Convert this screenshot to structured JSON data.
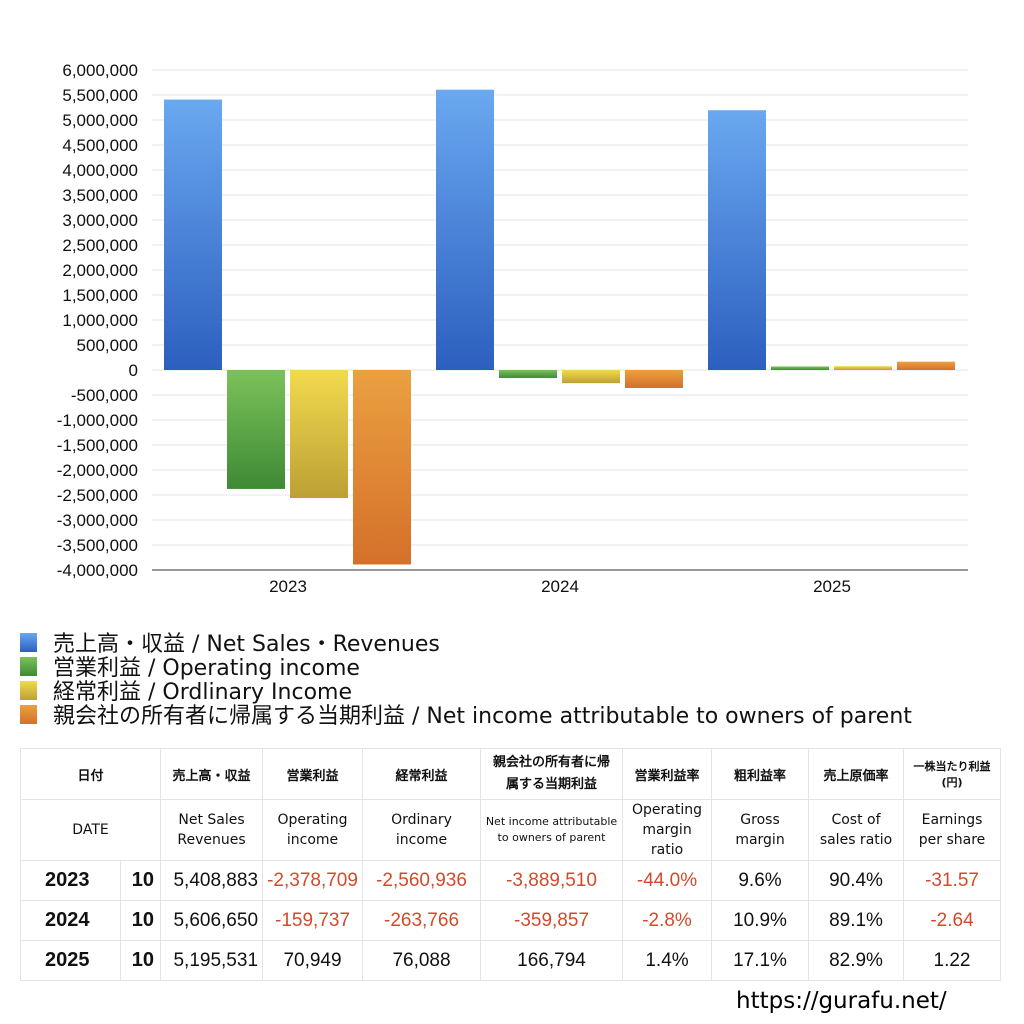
{
  "colors": {
    "net_sales": "#4a89e0",
    "operating_income": "#5ba844",
    "ordinary_income": "#d8bc3a",
    "net_income_parent": "#e0862e",
    "negative_text": "#d24a2a"
  },
  "chart_data": {
    "type": "bar",
    "categories": [
      "2023",
      "2024",
      "2025"
    ],
    "series": [
      {
        "name": "売上高・収益 / Net Sales・Revenues",
        "values": [
          5408883,
          5606650,
          5195531
        ]
      },
      {
        "name": "営業利益 / Operating income",
        "values": [
          -2378709,
          -159737,
          70949
        ]
      },
      {
        "name": "経常利益 / Ordlinary Income",
        "values": [
          -2560936,
          -263766,
          76088
        ]
      },
      {
        "name": "親会社の所有者に帰属する当期利益 / Net income attributable to owners of parent",
        "values": [
          -3889510,
          -359857,
          166794
        ]
      }
    ],
    "ylim": [
      -4000000,
      6000000
    ],
    "ytick_step": 500000,
    "ytick_labels": [
      "6,000,000",
      "5,500,000",
      "5,000,000",
      "4,500,000",
      "4,000,000",
      "3,500,000",
      "3,000,000",
      "2,500,000",
      "2,000,000",
      "1,500,000",
      "1,000,000",
      "500,000",
      "0",
      "-500,000",
      "-1,000,000",
      "-1,500,000",
      "-2,000,000",
      "-2,500,000",
      "-3,000,000",
      "-3,500,000",
      "-4,000,000"
    ],
    "title": "",
    "xlabel": "",
    "ylabel": "",
    "grid": true,
    "legend": "bottom"
  },
  "table": {
    "header_jp": [
      "日付",
      "売上高・収益",
      "営業利益",
      "経常利益",
      "親会社の所有者に帰属する当期利益",
      "営業利益率",
      "粗利益率",
      "売上原価率",
      "一株当たり利益 (円)"
    ],
    "header_en": [
      "DATE",
      "Net Sales Revenues",
      "Operating income",
      "Ordinary income",
      "Net income attributable to owners of parent",
      "Operating margin ratio",
      "Gross margin",
      "Cost of sales ratio",
      "Earnings per share"
    ],
    "rows": [
      {
        "year": "2023",
        "month": "10",
        "net_sales": "5,408,883",
        "operating_income": "-2,378,709",
        "ordinary_income": "-2,560,936",
        "net_income": "-3,889,510",
        "operating_margin": "-44.0%",
        "gross_margin": "9.6%",
        "cost_ratio": "90.4%",
        "eps": "-31.57"
      },
      {
        "year": "2024",
        "month": "10",
        "net_sales": "5,606,650",
        "operating_income": "-159,737",
        "ordinary_income": "-263,766",
        "net_income": "-359,857",
        "operating_margin": "-2.8%",
        "gross_margin": "10.9%",
        "cost_ratio": "89.1%",
        "eps": "-2.64"
      },
      {
        "year": "2025",
        "month": "10",
        "net_sales": "5,195,531",
        "operating_income": "70,949",
        "ordinary_income": "76,088",
        "net_income": "166,794",
        "operating_margin": "1.4%",
        "gross_margin": "17.1%",
        "cost_ratio": "82.9%",
        "eps": "1.22"
      }
    ]
  },
  "source": "https://gurafu.net/"
}
